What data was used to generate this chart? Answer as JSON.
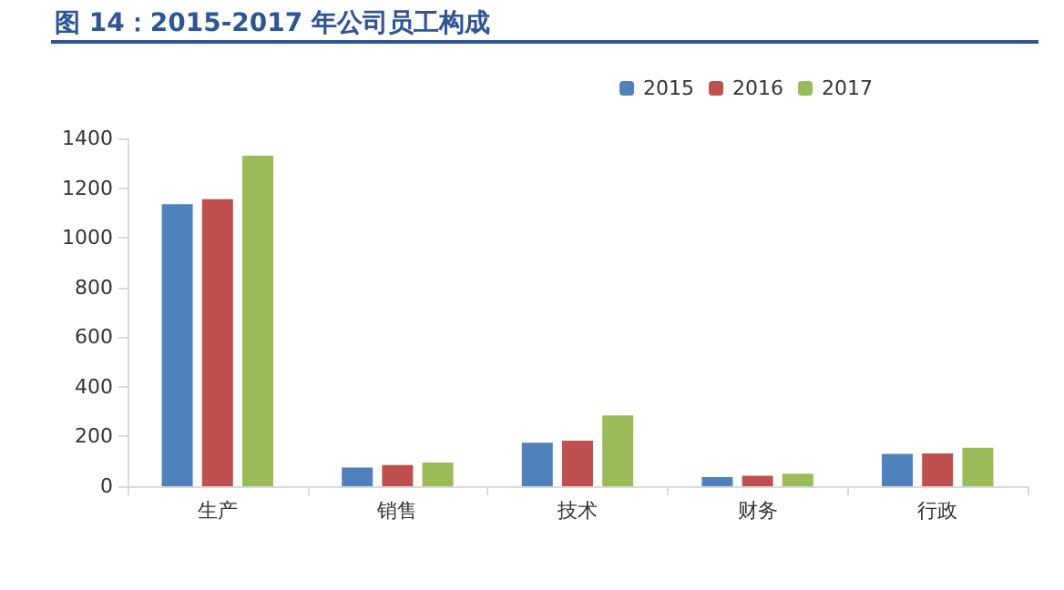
{
  "chart_data": {
    "type": "bar",
    "title": "图 14：2015-2017 年公司员工构成",
    "categories": [
      "生产",
      "销售",
      "技术",
      "财务",
      "行政"
    ],
    "series": [
      {
        "name": "2015",
        "color": "#4f81bd",
        "values": [
          1135,
          75,
          175,
          37,
          130
        ]
      },
      {
        "name": "2016",
        "color": "#c0504d",
        "values": [
          1155,
          85,
          183,
          42,
          132
        ]
      },
      {
        "name": "2017",
        "color": "#9bbb59",
        "values": [
          1330,
          95,
          285,
          50,
          155
        ]
      }
    ],
    "ylim": [
      0,
      1400
    ],
    "yticks": [
      0,
      200,
      400,
      600,
      800,
      1000,
      1200,
      1400
    ],
    "grid": false,
    "legend": "top right"
  }
}
